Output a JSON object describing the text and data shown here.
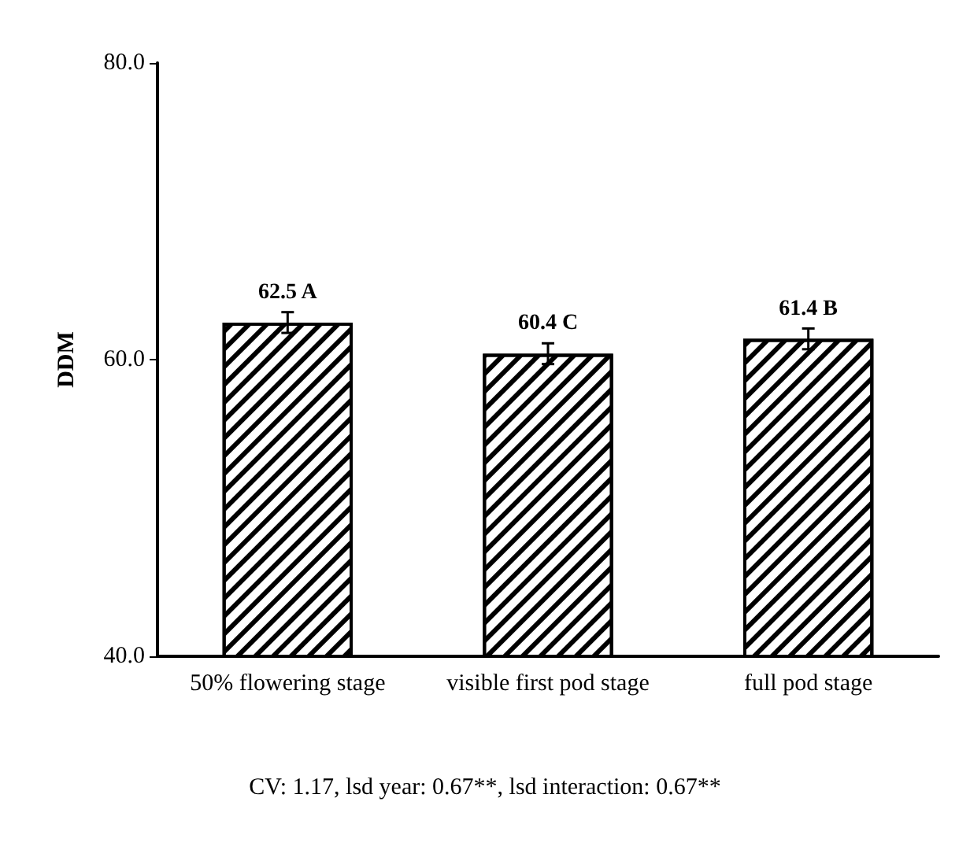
{
  "chart_data": {
    "type": "bar",
    "ylabel": "DDM",
    "categories": [
      "50% flowering stage",
      "visible first pod stage",
      "full pod stage"
    ],
    "values": [
      62.5,
      60.4,
      61.4
    ],
    "value_labels": [
      "62.5 A",
      "60.4 C",
      "61.4 B"
    ],
    "errors": [
      0.7,
      0.7,
      0.7
    ],
    "color": "#000000",
    "ylim": [
      40,
      80
    ],
    "yticks": [
      {
        "value": 40,
        "label": "40.0"
      },
      {
        "value": 60,
        "label": "60.0"
      },
      {
        "value": 80,
        "label": "80.0"
      }
    ],
    "grid": false,
    "annotations": [
      "CV: 1.17, lsd year: 0.67**, lsd interaction: 0.67**"
    ]
  }
}
